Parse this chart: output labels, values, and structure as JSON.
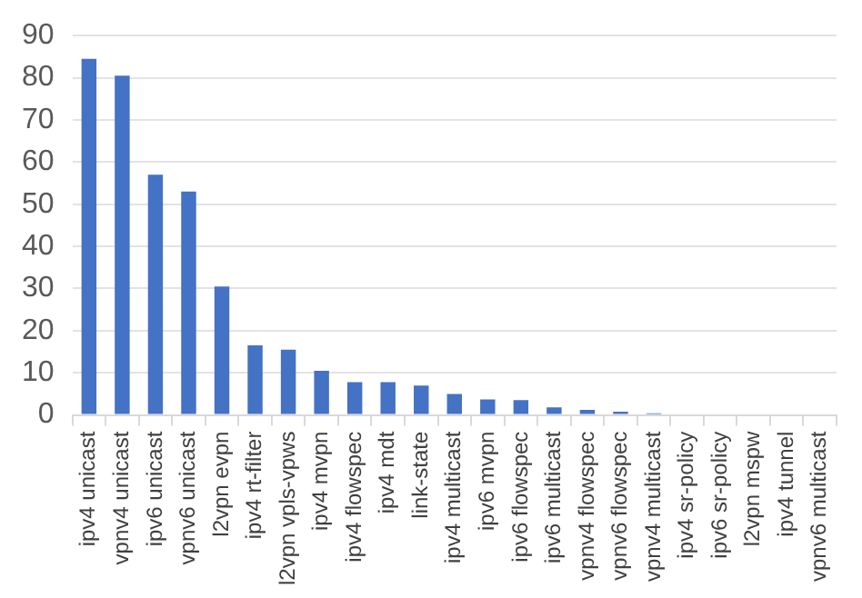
{
  "chart_data": {
    "type": "bar",
    "categories": [
      "ipv4 unicast",
      "vpnv4 unicast",
      "ipv6 unicast",
      "vpnv6 unicast",
      "l2vpn evpn",
      "ipv4 rt-filter",
      "l2vpn vpls-vpws",
      "ipv4 mvpn",
      "ipv4 flowspec",
      "ipv4 mdt",
      "link-state",
      "ipv4 multicast",
      "ipv6 mvpn",
      "ipv6 flowspec",
      "ipv6 multicast",
      "vpnv4 flowspec",
      "vpnv6 flowspec",
      "vpnv4 multicast",
      "ipv4 sr-policy",
      "ipv6 sr-policy",
      "l2vpn mspw",
      "ipv4 tunnel",
      "vpnv6 multicast"
    ],
    "values": [
      84.5,
      80.5,
      57,
      53,
      30.5,
      16.5,
      15.5,
      10.5,
      7.8,
      7.8,
      7,
      5,
      3.7,
      3.5,
      1.8,
      1.2,
      0.8,
      0.4,
      0,
      0,
      0,
      0,
      0
    ],
    "color": "#4472c4",
    "ylim": [
      0,
      90
    ],
    "yticks": [
      0,
      10,
      20,
      30,
      40,
      50,
      60,
      70,
      80,
      90
    ],
    "grid": "y"
  }
}
